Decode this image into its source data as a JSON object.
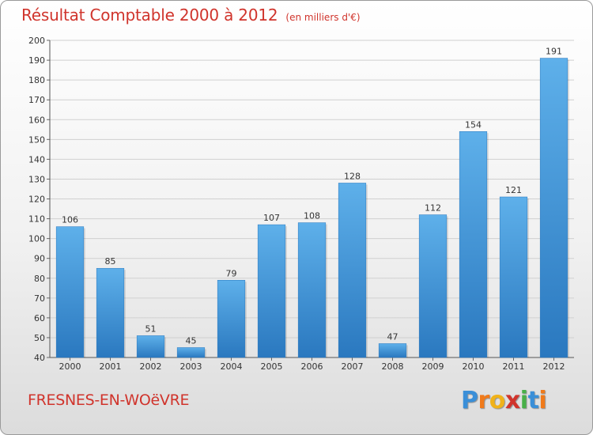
{
  "header": {
    "title": "Résultat Comptable 2000 à 2012",
    "subtitle": "(en milliers d'€)"
  },
  "footer": {
    "commune": "FRESNES-EN-WOëVRE",
    "logo_letters": [
      "P",
      "r",
      "o",
      "x",
      "i",
      "t",
      "i"
    ],
    "logo_colors": [
      "#3a8fd8",
      "#f07a1a",
      "#f0b21a",
      "#d0342c",
      "#48b048",
      "#3a8fd8",
      "#f07a1a"
    ]
  },
  "chart_data": {
    "type": "bar",
    "title": "Résultat Comptable 2000 à 2012",
    "subtitle": "(en milliers d'€)",
    "categories": [
      "2000",
      "2001",
      "2002",
      "2003",
      "2004",
      "2005",
      "2006",
      "2007",
      "2008",
      "2009",
      "2010",
      "2011",
      "2012"
    ],
    "values": [
      106,
      85,
      51,
      45,
      79,
      107,
      108,
      128,
      47,
      112,
      154,
      121,
      191
    ],
    "value_labels": [
      "106",
      "85",
      "51",
      "45",
      "79",
      "107",
      "108",
      "128",
      "47",
      "112",
      "154",
      "121",
      "191"
    ],
    "ylim": [
      40,
      200
    ],
    "yticks": [
      "40",
      "50",
      "60",
      "70",
      "80",
      "90",
      "100",
      "110",
      "120",
      "130",
      "140",
      "150",
      "160",
      "170",
      "180",
      "190",
      "200"
    ],
    "xlabel": "",
    "ylabel": "",
    "grid": true,
    "bar_color": "#3a95d8",
    "bar_color_top": "#5eb0ea",
    "bar_color_bottom": "#2a78bf"
  }
}
